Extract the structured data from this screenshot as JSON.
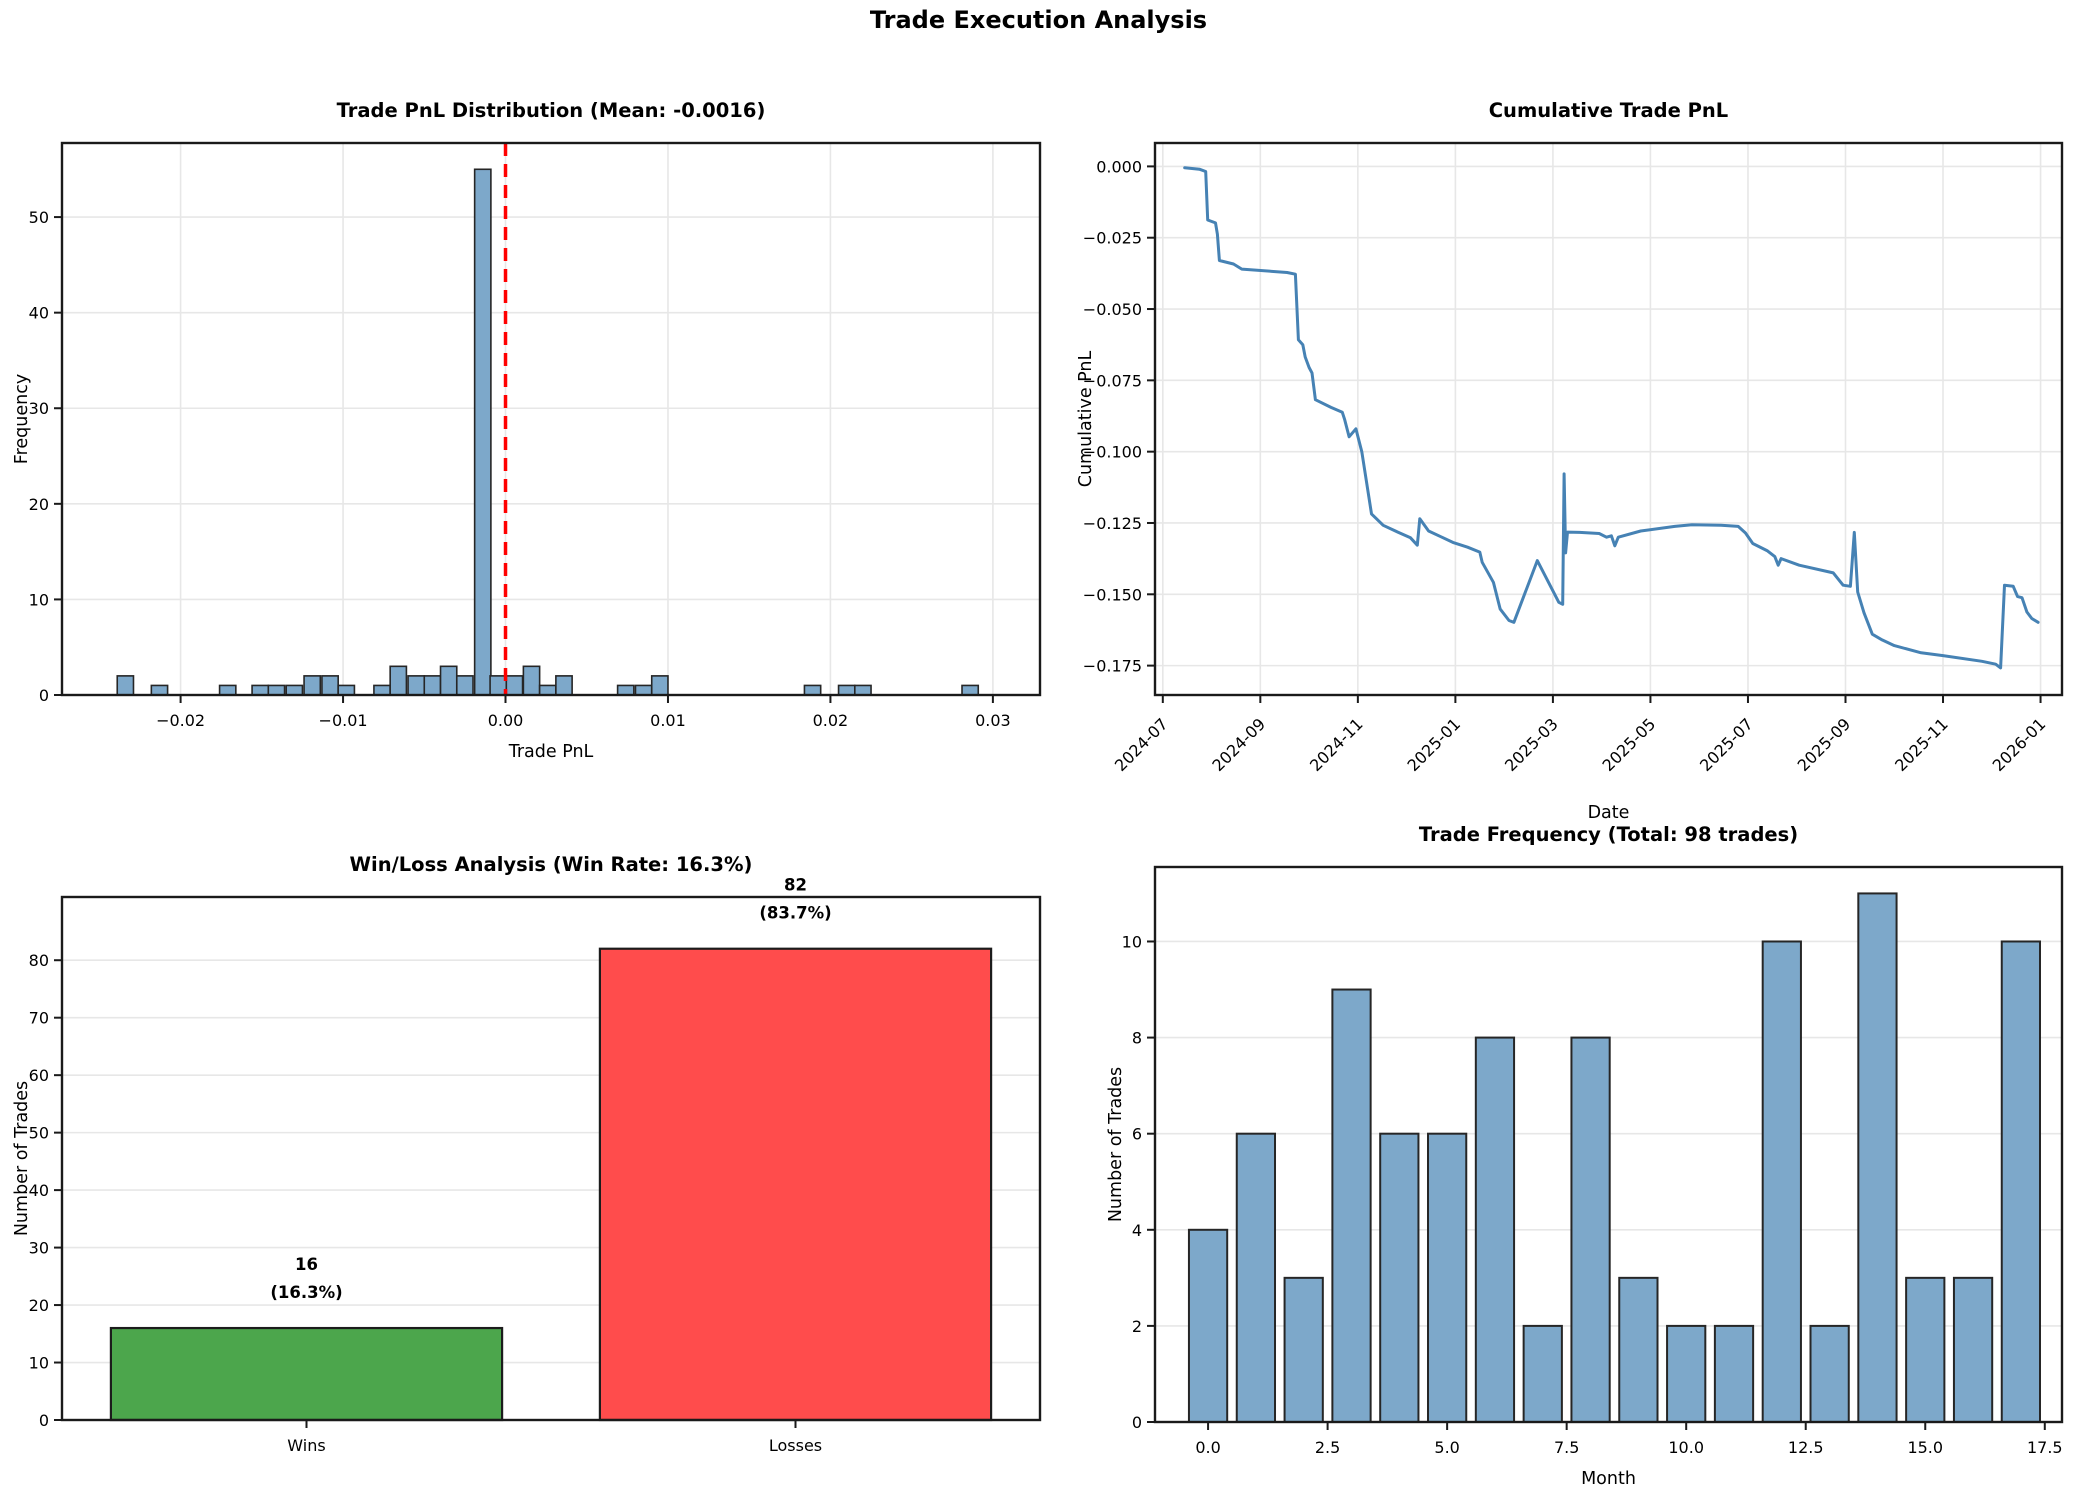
{
  "figure": {
    "title": "Trade Execution Analysis",
    "background": "#ffffff"
  },
  "colors": {
    "hist_fill": "#7DA8CA",
    "hist_edge": "#262626",
    "line_blue": "#4682B4",
    "vline_red": "#FF0000",
    "win_green": "#4CA64C",
    "loss_red": "#FF4C4C",
    "bar_edge": "#1C1C1C",
    "grid": "#E7E7E7",
    "spine": "#1A1A1A",
    "text": "#000000"
  },
  "chart_data": [
    {
      "type": "bar",
      "name": "pnl-distribution",
      "title": "Trade PnL Distribution (Mean: -0.0016)",
      "xlabel": "Trade PnL",
      "ylabel": "Frequency",
      "grid": "xy",
      "xlim": [
        -0.0273,
        0.0329
      ],
      "ylim": [
        0,
        57.75
      ],
      "bar_width": 0.001,
      "xticks": [
        {
          "v": -0.02,
          "label": "−0.02"
        },
        {
          "v": -0.01,
          "label": "−0.01"
        },
        {
          "v": 0.0,
          "label": "0.00"
        },
        {
          "v": 0.01,
          "label": "0.01"
        },
        {
          "v": 0.02,
          "label": "0.02"
        },
        {
          "v": 0.03,
          "label": "0.03"
        }
      ],
      "yticks": [
        {
          "v": 0,
          "label": "0"
        },
        {
          "v": 10,
          "label": "10"
        },
        {
          "v": 20,
          "label": "20"
        },
        {
          "v": 30,
          "label": "30"
        },
        {
          "v": 40,
          "label": "40"
        },
        {
          "v": 50,
          "label": "50"
        }
      ],
      "vline": {
        "x": 0.0,
        "style": "dashed"
      },
      "bars": [
        [
          -0.0234,
          2
        ],
        [
          -0.0213,
          1
        ],
        [
          -0.0171,
          1
        ],
        [
          -0.0151,
          1
        ],
        [
          -0.0141,
          1
        ],
        [
          -0.013,
          1
        ],
        [
          -0.0119,
          2
        ],
        [
          -0.0108,
          2
        ],
        [
          -0.0098,
          1
        ],
        [
          -0.0076,
          1
        ],
        [
          -0.0066,
          3
        ],
        [
          -0.0055,
          2
        ],
        [
          -0.0045,
          2
        ],
        [
          -0.0035,
          3
        ],
        [
          -0.0025,
          2
        ],
        [
          -0.0014,
          55
        ],
        [
          -0.00045,
          2
        ],
        [
          0.00055,
          2
        ],
        [
          0.0016,
          3
        ],
        [
          0.0026,
          1
        ],
        [
          0.0036,
          2
        ],
        [
          0.0074,
          1
        ],
        [
          0.0085,
          1
        ],
        [
          0.0095,
          2
        ],
        [
          0.0189,
          1
        ],
        [
          0.021,
          1
        ],
        [
          0.022,
          1
        ],
        [
          0.0286,
          1
        ]
      ]
    },
    {
      "type": "line",
      "name": "cumulative-pnl",
      "title": "Cumulative Trade PnL",
      "xlabel": "Date",
      "ylabel": "Cumulative PnL",
      "grid": "xy",
      "xlim": [
        -0.16,
        18.44
      ],
      "ylim": [
        -0.1853,
        0.0082
      ],
      "rotate_xticks": true,
      "xticks": [
        {
          "v": 0,
          "label": "2024-07"
        },
        {
          "v": 2,
          "label": "2024-09"
        },
        {
          "v": 4,
          "label": "2024-11"
        },
        {
          "v": 6,
          "label": "2025-01"
        },
        {
          "v": 8,
          "label": "2025-03"
        },
        {
          "v": 10,
          "label": "2025-05"
        },
        {
          "v": 12,
          "label": "2025-07"
        },
        {
          "v": 14,
          "label": "2025-09"
        },
        {
          "v": 16,
          "label": "2025-11"
        },
        {
          "v": 18,
          "label": "2026-01"
        }
      ],
      "yticks": [
        {
          "v": 0.0,
          "label": "0.000"
        },
        {
          "v": -0.025,
          "label": "−0.025"
        },
        {
          "v": -0.05,
          "label": "−0.050"
        },
        {
          "v": -0.075,
          "label": "−0.075"
        },
        {
          "v": -0.1,
          "label": "−0.100"
        },
        {
          "v": -0.125,
          "label": "−0.125"
        },
        {
          "v": -0.15,
          "label": "−0.150"
        },
        {
          "v": -0.175,
          "label": "−0.175"
        }
      ],
      "points": [
        [
          0.45,
          -0.0005
        ],
        [
          0.75,
          -0.001
        ],
        [
          0.88,
          -0.0018
        ],
        [
          0.92,
          -0.0188
        ],
        [
          1.08,
          -0.0198
        ],
        [
          1.12,
          -0.0238
        ],
        [
          1.16,
          -0.033
        ],
        [
          1.45,
          -0.0342
        ],
        [
          1.62,
          -0.036
        ],
        [
          2.55,
          -0.0372
        ],
        [
          2.72,
          -0.0378
        ],
        [
          2.78,
          -0.0608
        ],
        [
          2.87,
          -0.0625
        ],
        [
          2.92,
          -0.0668
        ],
        [
          3.0,
          -0.0705
        ],
        [
          3.06,
          -0.0724
        ],
        [
          3.13,
          -0.0818
        ],
        [
          3.45,
          -0.0845
        ],
        [
          3.68,
          -0.0862
        ],
        [
          3.73,
          -0.0888
        ],
        [
          3.82,
          -0.0948
        ],
        [
          3.96,
          -0.092
        ],
        [
          4.08,
          -0.1
        ],
        [
          4.28,
          -0.1218
        ],
        [
          4.52,
          -0.1258
        ],
        [
          4.82,
          -0.1282
        ],
        [
          5.08,
          -0.1302
        ],
        [
          5.22,
          -0.1328
        ],
        [
          5.27,
          -0.1235
        ],
        [
          5.45,
          -0.1278
        ],
        [
          5.7,
          -0.1298
        ],
        [
          5.95,
          -0.1318
        ],
        [
          6.25,
          -0.1335
        ],
        [
          6.5,
          -0.1352
        ],
        [
          6.55,
          -0.1388
        ],
        [
          6.78,
          -0.1458
        ],
        [
          6.92,
          -0.1552
        ],
        [
          7.1,
          -0.1592
        ],
        [
          7.2,
          -0.1598
        ],
        [
          7.68,
          -0.1382
        ],
        [
          8.12,
          -0.1528
        ],
        [
          8.2,
          -0.1535
        ],
        [
          8.23,
          -0.1078
        ],
        [
          8.26,
          -0.1355
        ],
        [
          8.3,
          -0.1282
        ],
        [
          8.55,
          -0.1283
        ],
        [
          8.95,
          -0.1287
        ],
        [
          9.1,
          -0.13
        ],
        [
          9.2,
          -0.1295
        ],
        [
          9.27,
          -0.133
        ],
        [
          9.34,
          -0.13
        ],
        [
          9.8,
          -0.1278
        ],
        [
          10.5,
          -0.1262
        ],
        [
          10.85,
          -0.1256
        ],
        [
          11.45,
          -0.1258
        ],
        [
          11.8,
          -0.1262
        ],
        [
          11.95,
          -0.1285
        ],
        [
          12.1,
          -0.1322
        ],
        [
          12.4,
          -0.1348
        ],
        [
          12.55,
          -0.1368
        ],
        [
          12.62,
          -0.1398
        ],
        [
          12.68,
          -0.1375
        ],
        [
          13.05,
          -0.1398
        ],
        [
          13.75,
          -0.1425
        ],
        [
          13.95,
          -0.1468
        ],
        [
          14.1,
          -0.1472
        ],
        [
          14.18,
          -0.1283
        ],
        [
          14.25,
          -0.1492
        ],
        [
          14.38,
          -0.1565
        ],
        [
          14.55,
          -0.164
        ],
        [
          14.75,
          -0.166
        ],
        [
          15.0,
          -0.168
        ],
        [
          15.55,
          -0.1705
        ],
        [
          16.0,
          -0.1715
        ],
        [
          16.8,
          -0.1735
        ],
        [
          17.08,
          -0.1745
        ],
        [
          17.18,
          -0.1758
        ],
        [
          17.26,
          -0.1468
        ],
        [
          17.44,
          -0.1472
        ],
        [
          17.53,
          -0.1508
        ],
        [
          17.62,
          -0.1512
        ],
        [
          17.72,
          -0.1562
        ],
        [
          17.82,
          -0.1585
        ],
        [
          17.95,
          -0.1598
        ]
      ]
    },
    {
      "type": "catbar",
      "name": "win-loss",
      "title": "Win/Loss Analysis (Win Rate: 16.3%)",
      "xlabel": "",
      "ylabel": "Number of Trades",
      "grid": "y",
      "xlim": [
        -0.5,
        1.5
      ],
      "ylim": [
        0,
        91
      ],
      "bar_width": 0.8,
      "win_rate": "16.3%",
      "categories": [
        {
          "x": 0,
          "label": "Wins",
          "value": 16,
          "annotation": [
            "16",
            "(16.3%)"
          ],
          "color_key": "win_green"
        },
        {
          "x": 1,
          "label": "Losses",
          "value": 82,
          "annotation": [
            "82",
            "(83.7%)"
          ],
          "color_key": "loss_red"
        }
      ],
      "yticks": [
        {
          "v": 0,
          "label": "0"
        },
        {
          "v": 10,
          "label": "10"
        },
        {
          "v": 20,
          "label": "20"
        },
        {
          "v": 30,
          "label": "30"
        },
        {
          "v": 40,
          "label": "40"
        },
        {
          "v": 50,
          "label": "50"
        },
        {
          "v": 60,
          "label": "60"
        },
        {
          "v": 70,
          "label": "70"
        },
        {
          "v": 80,
          "label": "80"
        }
      ]
    },
    {
      "type": "bar",
      "name": "trade-frequency",
      "title": "Trade Frequency (Total: 98 trades)",
      "xlabel": "Month",
      "ylabel": "Number of Trades",
      "grid": "y",
      "xlim": [
        -1.11,
        17.86
      ],
      "ylim": [
        0,
        11.55
      ],
      "bar_width": 0.8,
      "total_trades": 98,
      "xticks": [
        {
          "v": 0,
          "label": "0.0"
        },
        {
          "v": 2.5,
          "label": "2.5"
        },
        {
          "v": 5,
          "label": "5.0"
        },
        {
          "v": 7.5,
          "label": "7.5"
        },
        {
          "v": 10,
          "label": "10.0"
        },
        {
          "v": 12.5,
          "label": "12.5"
        },
        {
          "v": 15,
          "label": "15.0"
        },
        {
          "v": 17.5,
          "label": "17.5"
        }
      ],
      "yticks": [
        {
          "v": 0,
          "label": "0"
        },
        {
          "v": 2,
          "label": "2"
        },
        {
          "v": 4,
          "label": "4"
        },
        {
          "v": 6,
          "label": "6"
        },
        {
          "v": 8,
          "label": "8"
        },
        {
          "v": 10,
          "label": "10"
        }
      ],
      "bars": [
        [
          0,
          4
        ],
        [
          1,
          6
        ],
        [
          2,
          3
        ],
        [
          3,
          9
        ],
        [
          4,
          6
        ],
        [
          5,
          6
        ],
        [
          6,
          8
        ],
        [
          7,
          2
        ],
        [
          8,
          8
        ],
        [
          9,
          3
        ],
        [
          10,
          2
        ],
        [
          11,
          2
        ],
        [
          12,
          10
        ],
        [
          13,
          2
        ],
        [
          14,
          11
        ],
        [
          15,
          3
        ],
        [
          16,
          3
        ],
        [
          17,
          10
        ]
      ]
    }
  ]
}
